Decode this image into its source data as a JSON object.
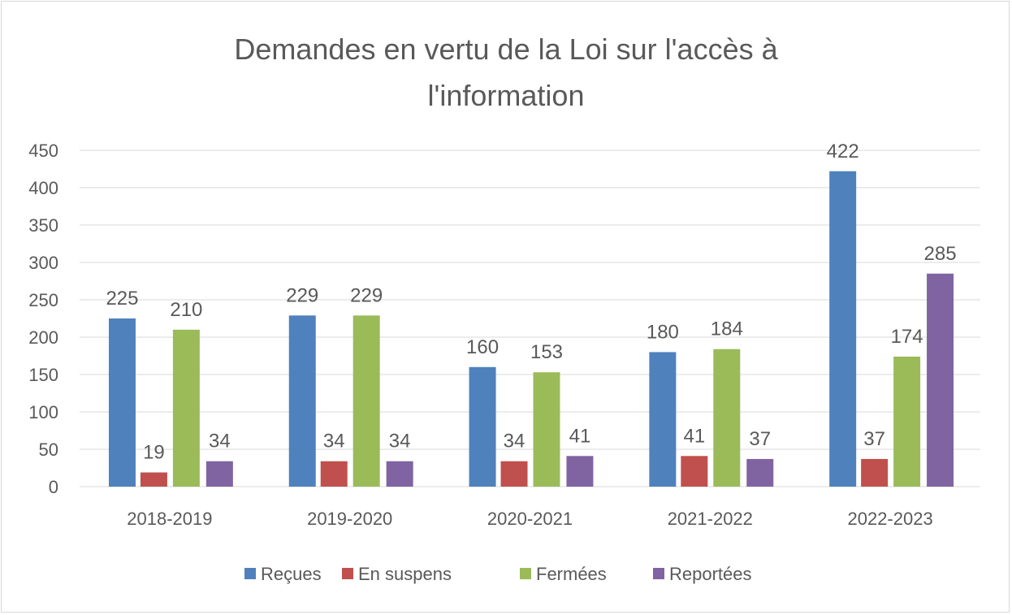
{
  "chart_data": {
    "type": "bar",
    "title_lines": [
      "Demandes en vertu de la Loi sur l'accès à",
      "l'information"
    ],
    "categories": [
      "2018-2019",
      "2019-2020",
      "2020-2021",
      "2021-2022",
      "2022-2023"
    ],
    "series": [
      {
        "name": "Reçues",
        "color": "#4F81BD",
        "values": [
          225,
          229,
          160,
          180,
          422
        ]
      },
      {
        "name": "En suspens",
        "color": "#C0504D",
        "values": [
          19,
          34,
          34,
          41,
          37
        ]
      },
      {
        "name": "Fermées",
        "color": "#9BBB59",
        "values": [
          210,
          229,
          153,
          184,
          174
        ]
      },
      {
        "name": "Reportées",
        "color": "#8064A2",
        "values": [
          34,
          34,
          41,
          37,
          285
        ]
      }
    ],
    "ylim": [
      0,
      450
    ],
    "yticks": [
      0,
      50,
      100,
      150,
      200,
      250,
      300,
      350,
      400,
      450
    ],
    "grid": true,
    "legend": "bottom",
    "xlabel": "",
    "ylabel": ""
  }
}
